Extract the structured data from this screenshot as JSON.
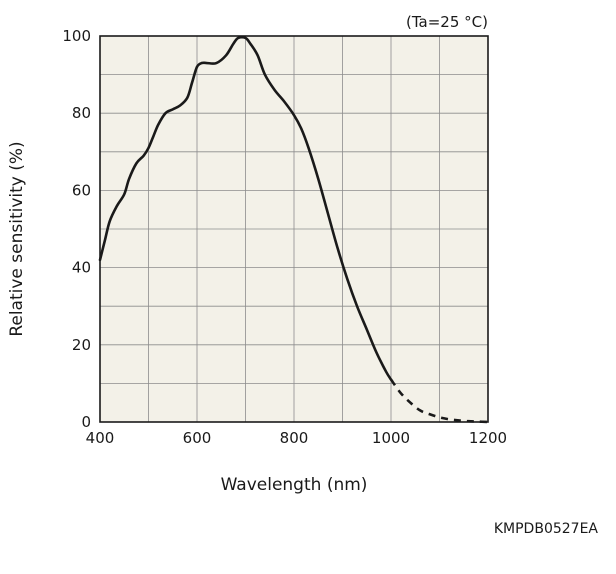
{
  "chart_data": {
    "type": "line",
    "annotation": "(Ta=25 °C)",
    "xlabel": "Wavelength (nm)",
    "ylabel": "Relative sensitivity (%)",
    "xlim": [
      400,
      1200
    ],
    "ylim": [
      0,
      100
    ],
    "x_ticks": [
      400,
      600,
      800,
      1000,
      1200
    ],
    "y_ticks": [
      0,
      20,
      40,
      60,
      80,
      100
    ],
    "x_grid_step": 100,
    "y_grid_step": 10,
    "grid": true,
    "legend": "none",
    "colors": {
      "plot_bg": "#f3f1e8",
      "grid": "#8c8c8c",
      "line": "#1a1a1a"
    },
    "series": [
      {
        "style": "solid",
        "x": [
          400,
          410,
          420,
          435,
          450,
          460,
          475,
          490,
          500,
          510,
          520,
          535,
          550,
          565,
          580,
          590,
          600,
          610,
          620,
          640,
          660,
          675,
          685,
          700,
          710,
          725,
          740,
          760,
          780,
          800,
          815,
          830,
          850,
          870,
          890,
          910,
          930,
          950,
          970,
          990,
          1000
        ],
        "y": [
          42,
          47,
          52,
          56,
          59,
          63,
          67,
          69,
          71,
          74,
          77,
          80,
          81,
          82,
          84,
          88,
          92,
          93,
          93,
          93,
          95,
          98,
          99.5,
          99.5,
          98,
          95,
          90,
          86,
          83,
          79.5,
          76,
          71,
          63,
          54,
          45,
          37,
          30,
          24,
          18,
          13,
          11
        ]
      },
      {
        "style": "dashed",
        "x": [
          1000,
          1020,
          1040,
          1060,
          1080,
          1100,
          1120,
          1140,
          1160,
          1180,
          1200
        ],
        "y": [
          11,
          7.5,
          5,
          3,
          2,
          1.2,
          0.7,
          0.4,
          0.2,
          0.1,
          0
        ]
      }
    ]
  },
  "figure_code": "KMPDB0527EA"
}
